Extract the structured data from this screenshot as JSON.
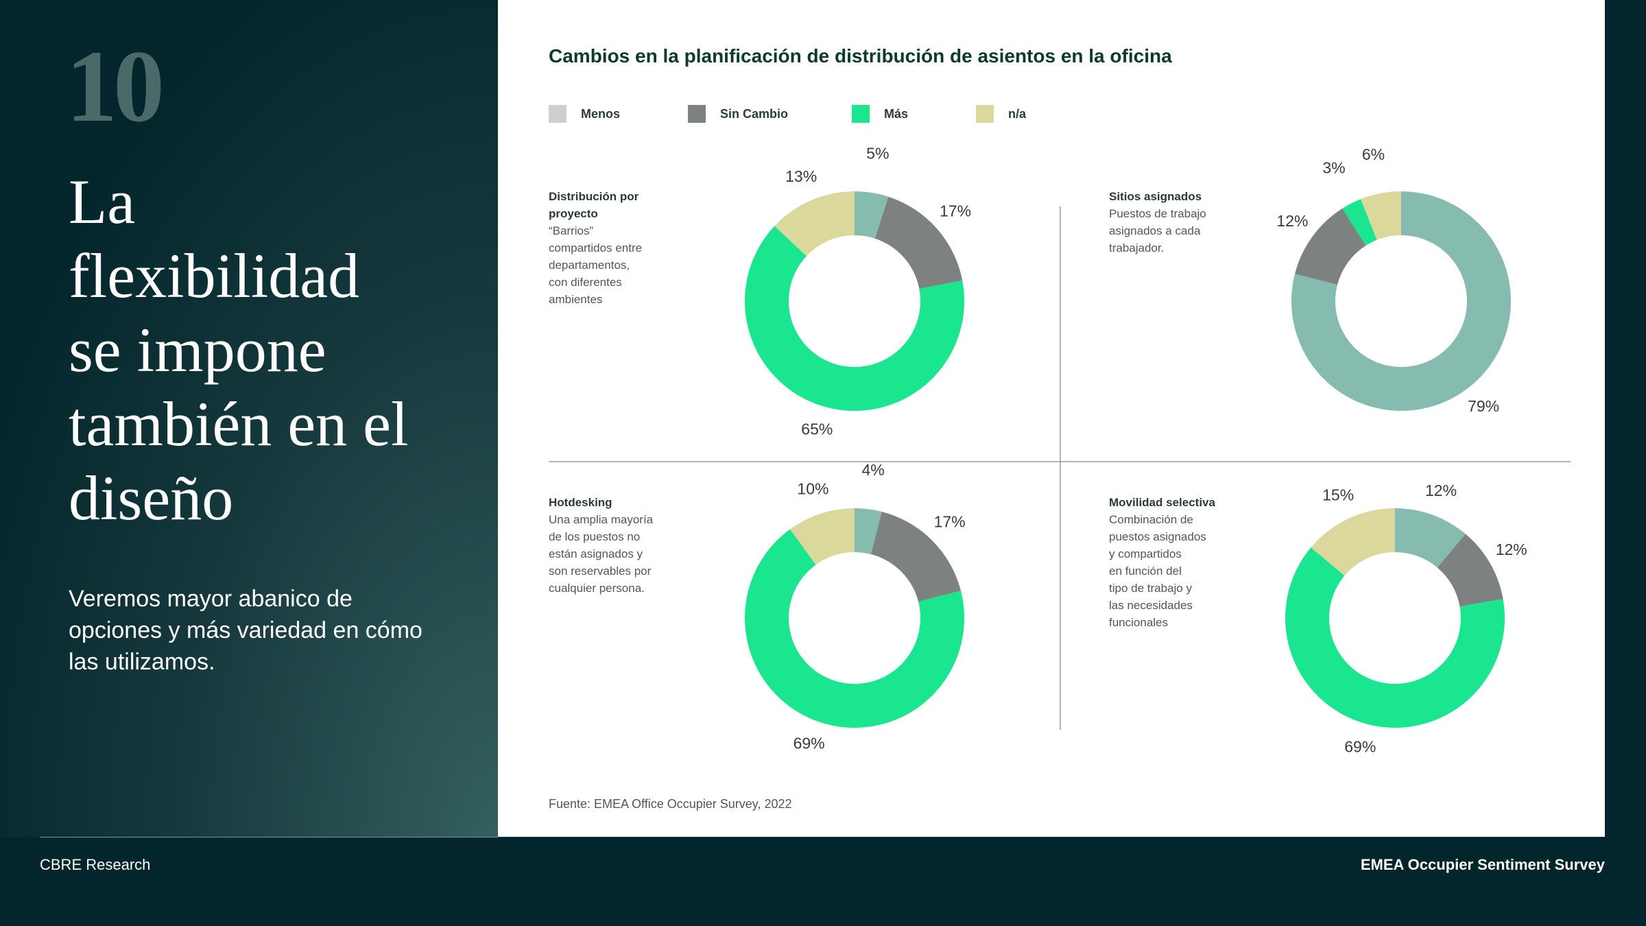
{
  "page_number": "10",
  "headline_lines": [
    "La",
    "flexibilidad",
    "se impone",
    "también en el",
    "diseño"
  ],
  "subtitle": "Veremos mayor abanico de opciones y más variedad en cómo las utilizamos.",
  "panel_title": "Cambios en la planificación de distribución de asientos en la oficina",
  "legend": [
    {
      "name": "Menos",
      "color": "#cfcfcf"
    },
    {
      "name": "Sin Cambio",
      "color": "#7d817f"
    },
    {
      "name": "Más",
      "color": "#19e68e"
    },
    {
      "name": "n/a",
      "color": "#dbd89b"
    }
  ],
  "chart_data": [
    {
      "type": "pie",
      "title_lines": [
        "Distribución por",
        "proyecto"
      ],
      "description_lines": [
        "“Barrios”",
        "compartidos entre",
        "departamentos,",
        "con diferentes",
        "ambientes"
      ],
      "values": [
        5,
        17,
        65,
        13
      ],
      "value_labels": [
        "5%",
        "17%",
        "65%",
        "13%"
      ],
      "colors": [
        "#86bbb0",
        "#7d817f",
        "#19e68e",
        "#dbd89b"
      ]
    },
    {
      "type": "pie",
      "title_lines": [
        "Sitios asignados"
      ],
      "description_lines": [
        "Puestos de trabajo",
        "asignados a cada",
        "trabajador."
      ],
      "values": [
        79,
        12,
        3,
        6
      ],
      "value_labels": [
        "79%",
        "12%",
        "3%",
        "6%"
      ],
      "colors": [
        "#86bbb0",
        "#7d817f",
        "#19e68e",
        "#dbd89b"
      ]
    },
    {
      "type": "pie",
      "title_lines": [
        "Hotdesking"
      ],
      "description_lines": [
        "Una amplia mayoría",
        "de los puestos no",
        "están asignados y",
        "son reservables por",
        "cualquier persona."
      ],
      "values": [
        4,
        17,
        69,
        10
      ],
      "value_labels": [
        "4%",
        "17%",
        "69%",
        "10%"
      ],
      "colors": [
        "#86bbb0",
        "#7d817f",
        "#19e68e",
        "#dbd89b"
      ]
    },
    {
      "type": "pie",
      "title_lines": [
        "Movilidad selectiva"
      ],
      "description_lines": [
        "Combinación de",
        "puestos asignados",
        "y compartidos",
        "en función del",
        "tipo de trabajo y",
        "las necesidades",
        "funcionales"
      ],
      "values": [
        12,
        12,
        69,
        15
      ],
      "value_labels": [
        "12%",
        "12%",
        "69%",
        "15%"
      ],
      "colors": [
        "#86bbb0",
        "#7d817f",
        "#19e68e",
        "#dbd89b"
      ]
    }
  ],
  "source": "Fuente: EMEA Office Occupier Survey, 2022",
  "footer": {
    "left": "CBRE Research",
    "right": "EMEA Occupier Sentiment Survey"
  }
}
